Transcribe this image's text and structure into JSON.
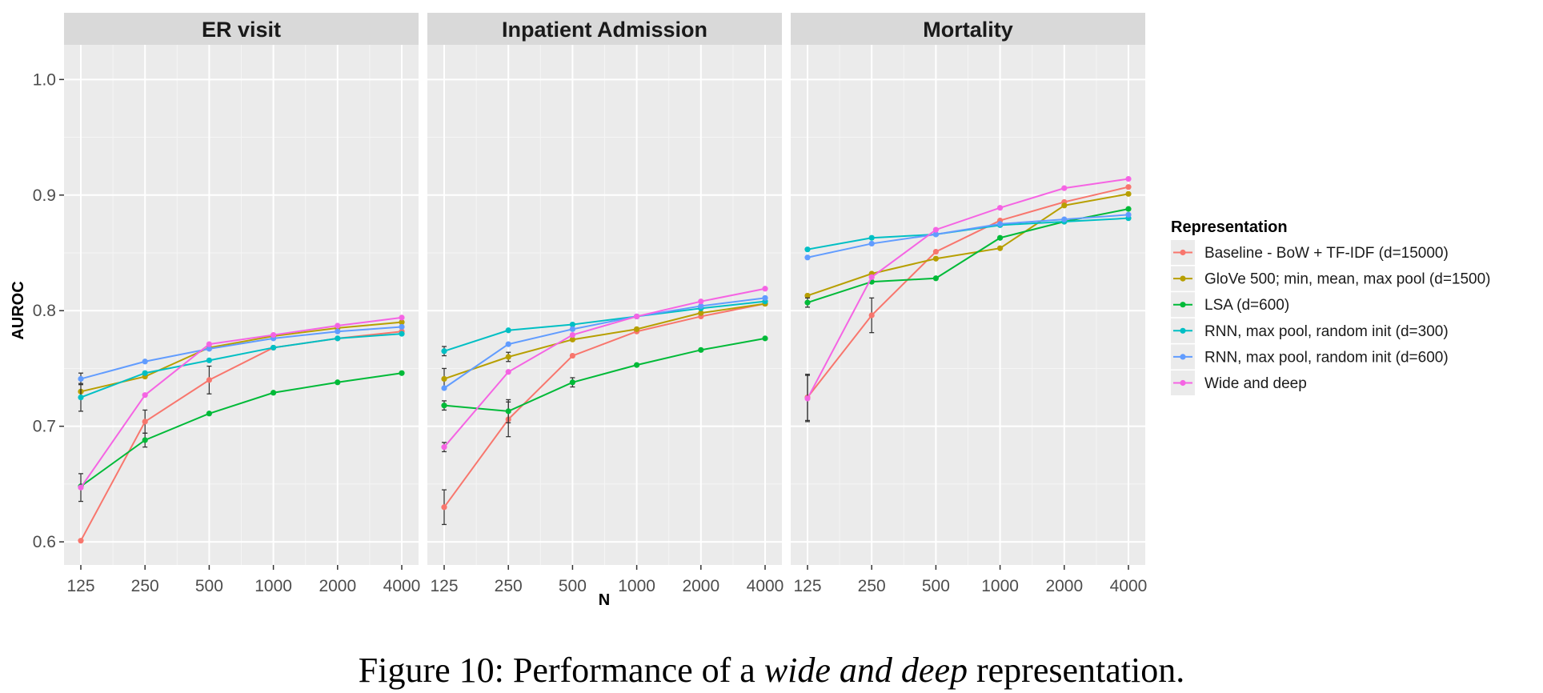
{
  "chart_data": {
    "type": "line",
    "ylabel": "AUROC",
    "xlabel": "N",
    "x_categories": [
      "125",
      "250",
      "500",
      "1000",
      "2000",
      "4000"
    ],
    "ylim": [
      0.58,
      1.03
    ],
    "yticks": [
      0.6,
      0.7,
      0.8,
      0.9,
      1.0
    ],
    "ytick_labels": [
      "0.6",
      "0.7",
      "0.8",
      "0.9",
      "1.0"
    ],
    "grid": true,
    "legend": {
      "title": "Representation",
      "placement": "right"
    },
    "series_styles": [
      {
        "name": "Baseline - BoW + TF-IDF (d=15000)",
        "color": "#F8766D"
      },
      {
        "name": "GloVe 500; min, mean, max pool (d=1500)",
        "color": "#B79F00"
      },
      {
        "name": "LSA (d=600)",
        "color": "#00BA38"
      },
      {
        "name": "RNN, max pool, random init (d=300)",
        "color": "#00BFC4"
      },
      {
        "name": "RNN, max pool, random init (d=600)",
        "color": "#619CFF"
      },
      {
        "name": "Wide and deep",
        "color": "#F564E3"
      }
    ],
    "panels": [
      {
        "title": "ER visit",
        "series": [
          {
            "name": "Baseline - BoW + TF-IDF (d=15000)",
            "values": [
              0.601,
              0.704,
              0.74,
              0.768,
              0.776,
              0.782
            ],
            "errors": [
              0.0,
              0.01,
              0.012,
              0.0,
              0.0,
              0.0
            ]
          },
          {
            "name": "GloVe 500; min, mean, max pool (d=1500)",
            "values": [
              0.73,
              0.743,
              0.768,
              0.778,
              0.785,
              0.79
            ],
            "errors": [
              0.0,
              0.0,
              0.0,
              0.0,
              0.0,
              0.0
            ]
          },
          {
            "name": "LSA (d=600)",
            "values": [
              0.648,
              0.688,
              0.711,
              0.729,
              0.738,
              0.746
            ],
            "errors": [
              0.0,
              0.006,
              0.0,
              0.0,
              0.0,
              0.0
            ]
          },
          {
            "name": "RNN, max pool, random init (d=300)",
            "values": [
              0.725,
              0.746,
              0.757,
              0.768,
              0.776,
              0.78
            ],
            "errors": [
              0.012,
              0.0,
              0.0,
              0.0,
              0.0,
              0.0
            ]
          },
          {
            "name": "RNN, max pool, random init (d=600)",
            "values": [
              0.741,
              0.756,
              0.767,
              0.776,
              0.782,
              0.786
            ],
            "errors": [
              0.005,
              0.0,
              0.0,
              0.0,
              0.0,
              0.0
            ]
          },
          {
            "name": "Wide and deep",
            "values": [
              0.647,
              0.727,
              0.771,
              0.779,
              0.787,
              0.794
            ],
            "errors": [
              0.012,
              0.0,
              0.0,
              0.0,
              0.0,
              0.0
            ]
          }
        ]
      },
      {
        "title": "Inpatient Admission",
        "series": [
          {
            "name": "Baseline - BoW + TF-IDF (d=15000)",
            "values": [
              0.63,
              0.706,
              0.761,
              0.782,
              0.795,
              0.806
            ],
            "errors": [
              0.015,
              0.015,
              0.0,
              0.0,
              0.0,
              0.0
            ]
          },
          {
            "name": "GloVe 500; min, mean, max pool (d=1500)",
            "values": [
              0.741,
              0.76,
              0.775,
              0.784,
              0.798,
              0.806
            ],
            "errors": [
              0.009,
              0.004,
              0.0,
              0.0,
              0.0,
              0.0
            ]
          },
          {
            "name": "LSA (d=600)",
            "values": [
              0.718,
              0.713,
              0.738,
              0.753,
              0.766,
              0.776
            ],
            "errors": [
              0.004,
              0.01,
              0.004,
              0.0,
              0.0,
              0.0
            ]
          },
          {
            "name": "RNN, max pool, random init (d=300)",
            "values": [
              0.765,
              0.783,
              0.788,
              0.795,
              0.802,
              0.808
            ],
            "errors": [
              0.004,
              0.0,
              0.0,
              0.0,
              0.0,
              0.0
            ]
          },
          {
            "name": "RNN, max pool, random init (d=600)",
            "values": [
              0.733,
              0.771,
              0.784,
              0.795,
              0.804,
              0.811
            ],
            "errors": [
              0.0,
              0.0,
              0.0,
              0.0,
              0.0,
              0.0
            ]
          },
          {
            "name": "Wide and deep",
            "values": [
              0.682,
              0.747,
              0.779,
              0.795,
              0.808,
              0.819
            ],
            "errors": [
              0.004,
              0.0,
              0.0,
              0.0,
              0.0,
              0.0
            ]
          }
        ]
      },
      {
        "title": "Mortality",
        "series": [
          {
            "name": "Baseline - BoW + TF-IDF (d=15000)",
            "values": [
              0.725,
              0.796,
              0.851,
              0.878,
              0.894,
              0.907
            ],
            "errors": [
              0.02,
              0.015,
              0.0,
              0.0,
              0.0,
              0.0
            ]
          },
          {
            "name": "GloVe 500; min, mean, max pool (d=1500)",
            "values": [
              0.813,
              0.832,
              0.845,
              0.854,
              0.891,
              0.901
            ],
            "errors": [
              0.0,
              0.0,
              0.0,
              0.0,
              0.0,
              0.0
            ]
          },
          {
            "name": "LSA (d=600)",
            "values": [
              0.807,
              0.825,
              0.828,
              0.863,
              0.877,
              0.888
            ],
            "errors": [
              0.004,
              0.0,
              0.0,
              0.0,
              0.0,
              0.0
            ]
          },
          {
            "name": "RNN, max pool, random init (d=300)",
            "values": [
              0.853,
              0.863,
              0.866,
              0.874,
              0.877,
              0.88
            ],
            "errors": [
              0.0,
              0.0,
              0.0,
              0.0,
              0.0,
              0.0
            ]
          },
          {
            "name": "RNN, max pool, random init (d=600)",
            "values": [
              0.846,
              0.858,
              0.866,
              0.875,
              0.879,
              0.883
            ],
            "errors": [
              0.0,
              0.0,
              0.0,
              0.0,
              0.0,
              0.0
            ]
          },
          {
            "name": "Wide and deep",
            "values": [
              0.724,
              0.829,
              0.87,
              0.889,
              0.906,
              0.914
            ],
            "errors": [
              0.02,
              0.0,
              0.0,
              0.0,
              0.0,
              0.0
            ]
          }
        ]
      }
    ]
  },
  "caption": {
    "prefix": "Figure 10: Performance of a ",
    "emphasis": "wide and deep",
    "suffix": " representation."
  }
}
